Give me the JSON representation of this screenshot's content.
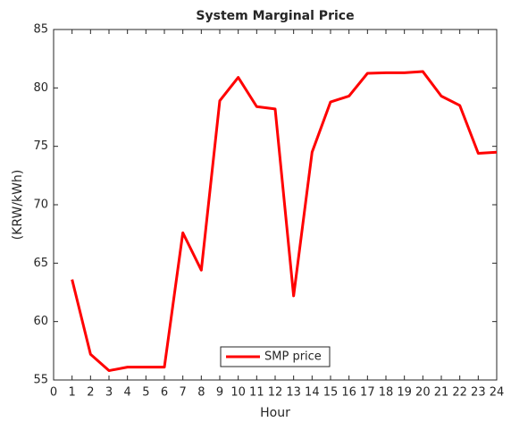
{
  "chart_data": {
    "type": "line",
    "title": "System Marginal Price",
    "xlabel": "Hour",
    "ylabel": "(KRW/kWh)",
    "x": [
      1,
      2,
      3,
      4,
      5,
      6,
      7,
      8,
      9,
      10,
      11,
      12,
      13,
      14,
      15,
      16,
      17,
      18,
      19,
      20,
      21,
      22,
      23,
      24
    ],
    "series": [
      {
        "name": "SMP price",
        "color": "#ff0000",
        "values": [
          63.6,
          57.2,
          55.8,
          56.1,
          56.1,
          56.1,
          67.6,
          64.4,
          78.9,
          80.9,
          78.4,
          78.2,
          62.2,
          74.5,
          78.8,
          79.3,
          81.25,
          81.3,
          81.3,
          81.4,
          79.3,
          78.5,
          74.4,
          74.5
        ]
      }
    ],
    "xlim": [
      0,
      24
    ],
    "xticks": [
      0,
      1,
      2,
      3,
      4,
      5,
      6,
      7,
      8,
      9,
      10,
      11,
      12,
      13,
      14,
      15,
      16,
      17,
      18,
      19,
      20,
      21,
      22,
      23,
      24
    ],
    "ylim": [
      55,
      85
    ],
    "yticks": [
      55,
      60,
      65,
      70,
      75,
      80,
      85
    ],
    "grid": false,
    "legend": "south"
  }
}
